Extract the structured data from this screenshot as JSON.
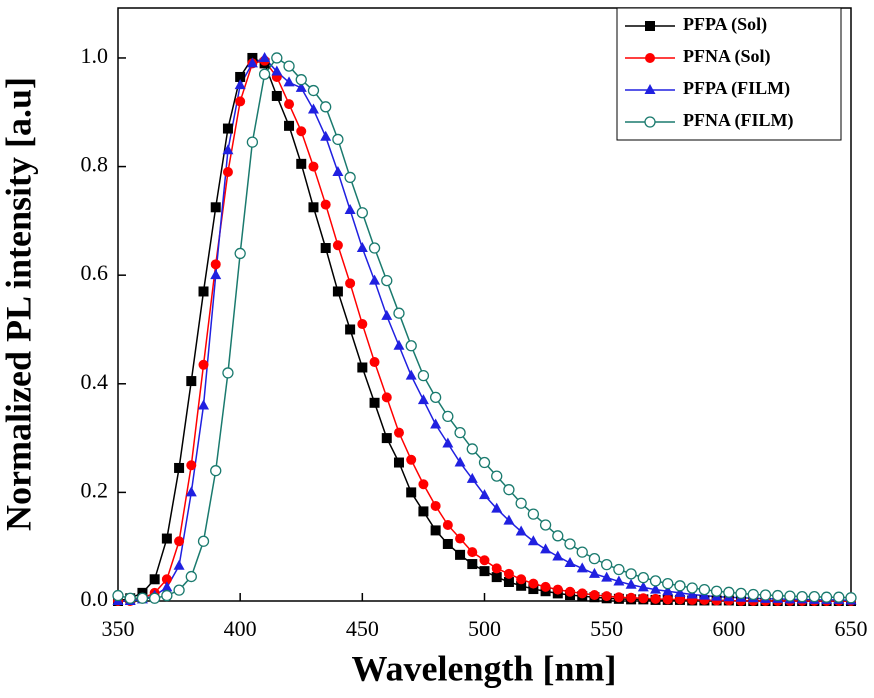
{
  "chart_data": {
    "type": "line",
    "xlabel": "Wavelength [nm]",
    "ylabel": "Normalized PL intensity [a.u]",
    "x": [
      350,
      355,
      360,
      365,
      370,
      375,
      380,
      385,
      390,
      395,
      400,
      405,
      410,
      415,
      420,
      425,
      430,
      435,
      440,
      445,
      450,
      455,
      460,
      465,
      470,
      475,
      480,
      485,
      490,
      495,
      500,
      505,
      510,
      515,
      520,
      525,
      530,
      535,
      540,
      545,
      550,
      555,
      560,
      565,
      570,
      575,
      580,
      585,
      590,
      595,
      600,
      605,
      610,
      615,
      620,
      625,
      630,
      635,
      640,
      645,
      650
    ],
    "series": [
      {
        "name": "PFPA (Sol)",
        "color": "#000000",
        "marker": "square",
        "values": [
          0,
          0.005,
          0.015,
          0.04,
          0.115,
          0.245,
          0.405,
          0.57,
          0.725,
          0.87,
          0.965,
          1.0,
          0.99,
          0.93,
          0.875,
          0.805,
          0.725,
          0.65,
          0.57,
          0.5,
          0.43,
          0.365,
          0.3,
          0.255,
          0.2,
          0.165,
          0.13,
          0.105,
          0.085,
          0.068,
          0.055,
          0.044,
          0.035,
          0.028,
          0.022,
          0.018,
          0.014,
          0.011,
          0.009,
          0.007,
          0.005,
          0.004,
          0.003,
          0.003,
          0.002,
          0.002,
          0.002,
          0.001,
          0.001,
          0.001,
          0.001,
          0,
          0,
          0,
          0,
          0,
          0,
          0,
          0,
          0,
          0
        ]
      },
      {
        "name": "PFNA (Sol)",
        "color": "#ff0000",
        "marker": "circle",
        "values": [
          0,
          0,
          0.005,
          0.015,
          0.04,
          0.11,
          0.25,
          0.435,
          0.62,
          0.79,
          0.92,
          0.99,
          0.995,
          0.965,
          0.915,
          0.865,
          0.8,
          0.73,
          0.655,
          0.585,
          0.51,
          0.44,
          0.375,
          0.31,
          0.26,
          0.215,
          0.175,
          0.14,
          0.115,
          0.09,
          0.075,
          0.06,
          0.05,
          0.04,
          0.032,
          0.026,
          0.021,
          0.017,
          0.014,
          0.011,
          0.009,
          0.007,
          0.006,
          0.005,
          0.004,
          0.003,
          0.003,
          0.002,
          0.002,
          0.001,
          0.001,
          0,
          0,
          0,
          0,
          0,
          0,
          0,
          0,
          0,
          0
        ]
      },
      {
        "name": "PFPA (FILM)",
        "color": "#2020e0",
        "marker": "triangle",
        "values": [
          0,
          0,
          0.003,
          0.01,
          0.025,
          0.065,
          0.2,
          0.36,
          0.6,
          0.83,
          0.95,
          0.99,
          1.0,
          0.975,
          0.955,
          0.945,
          0.905,
          0.855,
          0.79,
          0.72,
          0.65,
          0.59,
          0.525,
          0.47,
          0.415,
          0.37,
          0.325,
          0.29,
          0.255,
          0.225,
          0.195,
          0.17,
          0.148,
          0.128,
          0.11,
          0.095,
          0.082,
          0.07,
          0.06,
          0.05,
          0.043,
          0.036,
          0.03,
          0.025,
          0.021,
          0.018,
          0.015,
          0.012,
          0.01,
          0.008,
          0.007,
          0.006,
          0.005,
          0.004,
          0.004,
          0.003,
          0.003,
          0.002,
          0.002,
          0.002,
          0.001
        ]
      },
      {
        "name": "PFNA (FILM)",
        "color": "#1a7a6e",
        "marker": "open-circle",
        "values": [
          0.01,
          0.005,
          0.005,
          0.005,
          0.01,
          0.02,
          0.045,
          0.11,
          0.24,
          0.42,
          0.64,
          0.845,
          0.97,
          1.0,
          0.985,
          0.96,
          0.94,
          0.91,
          0.85,
          0.78,
          0.715,
          0.65,
          0.59,
          0.53,
          0.47,
          0.415,
          0.375,
          0.34,
          0.31,
          0.28,
          0.255,
          0.23,
          0.205,
          0.18,
          0.16,
          0.14,
          0.12,
          0.105,
          0.09,
          0.078,
          0.067,
          0.058,
          0.05,
          0.043,
          0.037,
          0.032,
          0.028,
          0.024,
          0.021,
          0.018,
          0.016,
          0.014,
          0.012,
          0.011,
          0.01,
          0.009,
          0.008,
          0.008,
          0.007,
          0.007,
          0.006
        ]
      }
    ],
    "xlim": [
      350,
      650
    ],
    "ylim": [
      0,
      1.092
    ],
    "xticks": [
      350,
      400,
      450,
      500,
      550,
      600,
      650
    ],
    "yticks": [
      {
        "value": 0,
        "label": "0.0"
      },
      0.2,
      0.4,
      0.6,
      0.8,
      {
        "value": 1,
        "label": "1.0"
      }
    ],
    "legend": "upper right",
    "grid": false
  }
}
